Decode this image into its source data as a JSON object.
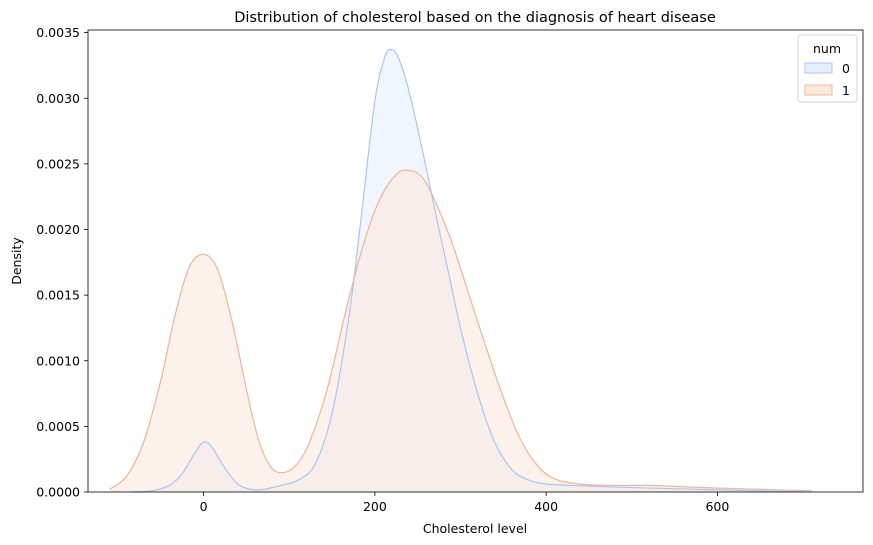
{
  "chart_data": {
    "type": "area",
    "title": "Distribution of cholesterol based on the diagnosis of heart disease",
    "xlabel": "Cholesterol level",
    "ylabel": "Density",
    "xlim": [
      -135,
      770
    ],
    "ylim": [
      0,
      0.00352
    ],
    "x_ticks": [
      0,
      200,
      400,
      600
    ],
    "x_tick_labels": [
      "0",
      "200",
      "400",
      "600"
    ],
    "y_ticks": [
      0,
      0.0005,
      0.001,
      0.0015,
      0.002,
      0.0025,
      0.003,
      0.0035
    ],
    "y_tick_labels": [
      "0.0000",
      "0.0005",
      "0.0010",
      "0.0015",
      "0.0020",
      "0.0025",
      "0.0030",
      "0.0035"
    ],
    "grid": false,
    "legend": {
      "title": "num",
      "placement": "top-right"
    },
    "series": [
      {
        "name": "0",
        "line_color": "#aac6f2",
        "fill_color": "#e8eefb",
        "points": [
          [
            -85,
            0.0
          ],
          [
            -60,
            1e-05
          ],
          [
            -40,
            5e-05
          ],
          [
            -25,
            0.00014
          ],
          [
            -10,
            0.0003
          ],
          [
            0,
            0.00038
          ],
          [
            10,
            0.00034
          ],
          [
            25,
            0.00018
          ],
          [
            40,
            6e-05
          ],
          [
            55,
            2e-05
          ],
          [
            70,
            2e-05
          ],
          [
            90,
            5e-05
          ],
          [
            110,
            9e-05
          ],
          [
            130,
            0.00021
          ],
          [
            150,
            0.0006
          ],
          [
            170,
            0.00135
          ],
          [
            185,
            0.00215
          ],
          [
            200,
            0.00298
          ],
          [
            212,
            0.00332
          ],
          [
            220,
            0.00337
          ],
          [
            228,
            0.0033
          ],
          [
            240,
            0.00305
          ],
          [
            255,
            0.00262
          ],
          [
            270,
            0.00215
          ],
          [
            285,
            0.0017
          ],
          [
            300,
            0.00125
          ],
          [
            320,
            0.00075
          ],
          [
            340,
            0.00038
          ],
          [
            360,
            0.00017
          ],
          [
            380,
            9e-05
          ],
          [
            400,
            6e-05
          ],
          [
            430,
            5e-05
          ],
          [
            470,
            4e-05
          ],
          [
            520,
            3e-05
          ],
          [
            580,
            2e-05
          ],
          [
            640,
            1e-05
          ],
          [
            700,
            0.0
          ]
        ]
      },
      {
        "name": "1",
        "line_color": "#f0b396",
        "fill_color": "#fbe8e0",
        "points": [
          [
            -110,
            2e-05
          ],
          [
            -90,
            0.00012
          ],
          [
            -70,
            0.00038
          ],
          [
            -50,
            0.00085
          ],
          [
            -35,
            0.0013
          ],
          [
            -20,
            0.00166
          ],
          [
            -10,
            0.00178
          ],
          [
            0,
            0.00181
          ],
          [
            10,
            0.00177
          ],
          [
            20,
            0.00163
          ],
          [
            35,
            0.00125
          ],
          [
            50,
            0.00078
          ],
          [
            65,
            0.00038
          ],
          [
            80,
            0.00018
          ],
          [
            95,
            0.00015
          ],
          [
            110,
            0.00022
          ],
          [
            125,
            0.0004
          ],
          [
            145,
            0.0008
          ],
          [
            165,
            0.00135
          ],
          [
            185,
            0.00185
          ],
          [
            205,
            0.00222
          ],
          [
            225,
            0.00242
          ],
          [
            240,
            0.00245
          ],
          [
            255,
            0.0024
          ],
          [
            270,
            0.00222
          ],
          [
            290,
            0.0019
          ],
          [
            310,
            0.0015
          ],
          [
            330,
            0.0011
          ],
          [
            350,
            0.00072
          ],
          [
            370,
            0.0004
          ],
          [
            390,
            0.0002
          ],
          [
            410,
            0.0001
          ],
          [
            440,
            6e-05
          ],
          [
            480,
            5e-05
          ],
          [
            520,
            5e-05
          ],
          [
            560,
            4e-05
          ],
          [
            600,
            3e-05
          ],
          [
            650,
            2e-05
          ],
          [
            710,
            1e-05
          ]
        ]
      }
    ]
  }
}
